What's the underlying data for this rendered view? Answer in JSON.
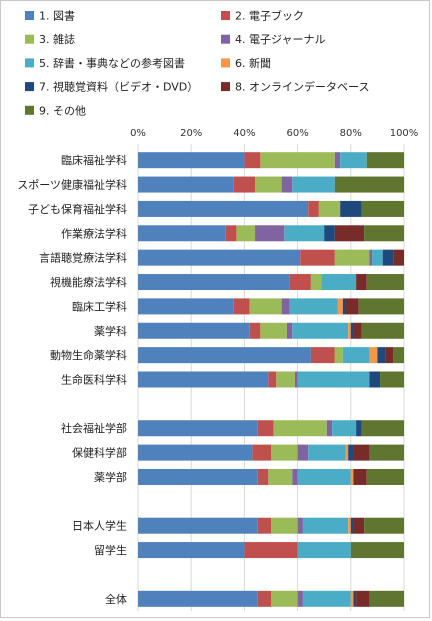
{
  "chart_data": {
    "type": "bar",
    "stacked": true,
    "orientation": "horizontal",
    "title": "",
    "xlabel": "",
    "ylabel": "",
    "xlim": [
      0,
      100
    ],
    "x_tick_labels": [
      "0%",
      "20%",
      "40%",
      "60%",
      "80%",
      "100%"
    ],
    "grid": true,
    "legend_position": "top",
    "categories": [
      "臨床福祉学科",
      "スポーツ健康福祉学科",
      "子ども保育福祉学科",
      "作業療法学科",
      "言語聴覚療法学科",
      "視機能療法学科",
      "臨床工学科",
      "薬学科",
      "動物生命薬学科",
      "生命医科学科",
      "",
      "社会福祉学部",
      "保健科学部",
      "薬学部",
      "",
      "日本人学生",
      "留学生",
      "",
      "全体"
    ],
    "series": [
      {
        "name": "1. 図書",
        "color": "#4f81bd",
        "values": [
          40,
          36,
          64,
          33,
          61,
          57,
          36,
          42,
          65,
          49,
          null,
          45,
          43,
          45,
          null,
          45,
          40,
          null,
          45
        ]
      },
      {
        "name": "2. 電子ブック",
        "color": "#c0504d",
        "values": [
          6,
          8,
          4,
          4,
          13,
          8,
          6,
          4,
          9,
          3,
          null,
          6,
          7,
          4,
          null,
          5,
          20,
          null,
          5
        ]
      },
      {
        "name": "3. 雑誌",
        "color": "#9bbb59",
        "values": [
          28,
          10,
          8,
          7,
          13,
          4,
          12,
          10,
          3,
          7,
          null,
          20,
          10,
          9,
          null,
          10,
          0,
          null,
          10
        ]
      },
      {
        "name": "4. 電子ジャーナル",
        "color": "#8064a2",
        "values": [
          2,
          4,
          0,
          11,
          1,
          0,
          3,
          2,
          0,
          1,
          null,
          2,
          4,
          2,
          null,
          2,
          0,
          null,
          2
        ]
      },
      {
        "name": "5. 辞書・事典などの参考図書",
        "color": "#4bacc6",
        "values": [
          10,
          16,
          0,
          15,
          4,
          13,
          18,
          21,
          10,
          27,
          null,
          9,
          14,
          20,
          null,
          17,
          20,
          null,
          18
        ]
      },
      {
        "name": "6. 新聞",
        "color": "#f79646",
        "values": [
          0,
          0,
          0,
          0,
          0,
          0,
          2,
          1,
          3,
          0,
          null,
          0,
          1,
          1,
          null,
          1,
          0,
          null,
          1
        ]
      },
      {
        "name": "7. 視聴覚資料（ビデオ・DVD）",
        "color": "#1f497d",
        "values": [
          0,
          0,
          8,
          4,
          4,
          0,
          1,
          1,
          3,
          4,
          null,
          2,
          2,
          0,
          null,
          1,
          0,
          null,
          1
        ]
      },
      {
        "name": "8. オンラインデータベース",
        "color": "#772c2a",
        "values": [
          0,
          0,
          0,
          11,
          4,
          4,
          5,
          3,
          3,
          0,
          null,
          0,
          6,
          5,
          null,
          4,
          0,
          null,
          5
        ]
      },
      {
        "name": "9. その他",
        "color": "#5f7530",
        "values": [
          14,
          26,
          16,
          15,
          0,
          14,
          17,
          16,
          4,
          9,
          null,
          16,
          13,
          14,
          null,
          15,
          20,
          null,
          13
        ]
      }
    ]
  }
}
